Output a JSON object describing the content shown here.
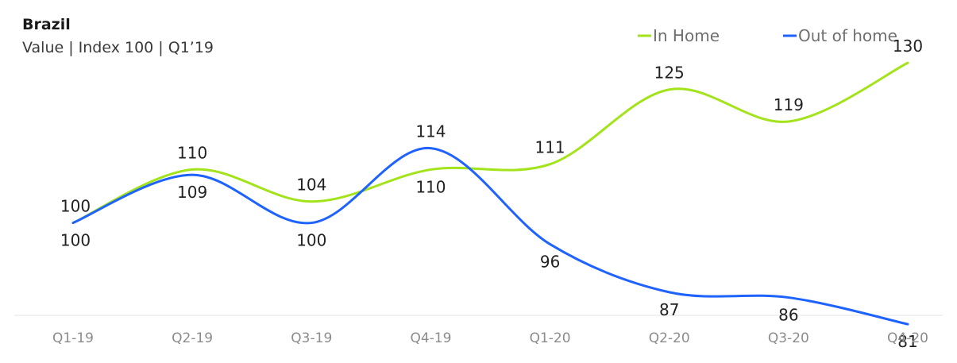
{
  "chart_data": {
    "type": "line",
    "title": "Brazil",
    "subtitle": "Value | Index 100 | Q1’19",
    "categories": [
      "Q1-19",
      "Q2-19",
      "Q3-19",
      "Q4-19",
      "Q1-20",
      "Q2-20",
      "Q3-20",
      "Q4-20"
    ],
    "series": [
      {
        "name": "In Home",
        "color": "#a3e31a",
        "values": [
          100,
          110,
          104,
          110,
          111,
          125,
          119,
          130
        ]
      },
      {
        "name": "Out of home",
        "color": "#1f63ff",
        "values": [
          100,
          109,
          100,
          114,
          96,
          87,
          86,
          81
        ]
      }
    ],
    "legend": {
      "position": "top-right"
    },
    "grid": false,
    "ylim": [
      70,
      140
    ]
  }
}
